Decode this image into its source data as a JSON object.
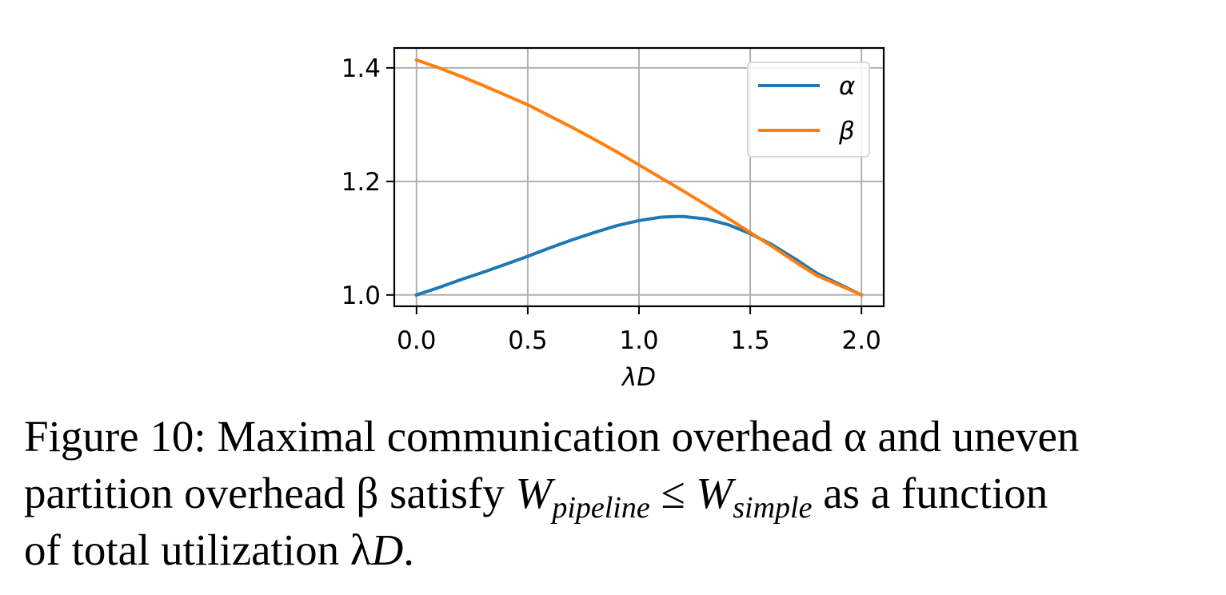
{
  "chart_data": {
    "type": "line",
    "xlabel": "λD",
    "ylabel": "",
    "title": "",
    "xlim": [
      -0.1,
      2.1
    ],
    "ylim": [
      0.98,
      1.435
    ],
    "xticks": [
      0.0,
      0.5,
      1.0,
      1.5,
      2.0
    ],
    "xtick_labels": [
      "0.0",
      "0.5",
      "1.0",
      "1.5",
      "2.0"
    ],
    "yticks": [
      1.0,
      1.2,
      1.4
    ],
    "ytick_labels": [
      "1.0",
      "1.2",
      "1.4"
    ],
    "grid": true,
    "legend_position": "upper right",
    "series": [
      {
        "name": "α",
        "color": "#1f77b4",
        "x": [
          0.0,
          0.1,
          0.2,
          0.3,
          0.4,
          0.5,
          0.6,
          0.7,
          0.8,
          0.9,
          1.0,
          1.1,
          1.17,
          1.2,
          1.3,
          1.4,
          1.5,
          1.6,
          1.7,
          1.8,
          1.9,
          2.0
        ],
        "y": [
          1.0,
          1.013,
          1.027,
          1.04,
          1.054,
          1.068,
          1.083,
          1.097,
          1.11,
          1.122,
          1.131,
          1.137,
          1.138,
          1.138,
          1.134,
          1.124,
          1.108,
          1.088,
          1.064,
          1.038,
          1.019,
          1.0
        ]
      },
      {
        "name": "β",
        "color": "#ff7f0e",
        "x": [
          0.0,
          0.1,
          0.2,
          0.3,
          0.4,
          0.5,
          0.6,
          0.7,
          0.8,
          0.9,
          1.0,
          1.1,
          1.2,
          1.3,
          1.4,
          1.5,
          1.6,
          1.7,
          1.8,
          1.9,
          2.0
        ],
        "y": [
          1.414,
          1.4,
          1.385,
          1.369,
          1.352,
          1.335,
          1.315,
          1.295,
          1.274,
          1.252,
          1.229,
          1.206,
          1.183,
          1.159,
          1.135,
          1.11,
          1.085,
          1.059,
          1.034,
          1.017,
          1.0
        ]
      }
    ]
  },
  "caption": {
    "line1": "Figure 10: Maximal communication overhead α and uneven",
    "line2_a": "partition overhead β satisfy ",
    "w1": "W",
    "w1_sub": "pipeline",
    "leq": " ≤ ",
    "w2": "W",
    "w2_sub": "simple",
    "line2_b": " as a function",
    "line3_a": "of total utilization λ",
    "line3_d": "D",
    "line3_b": "."
  }
}
